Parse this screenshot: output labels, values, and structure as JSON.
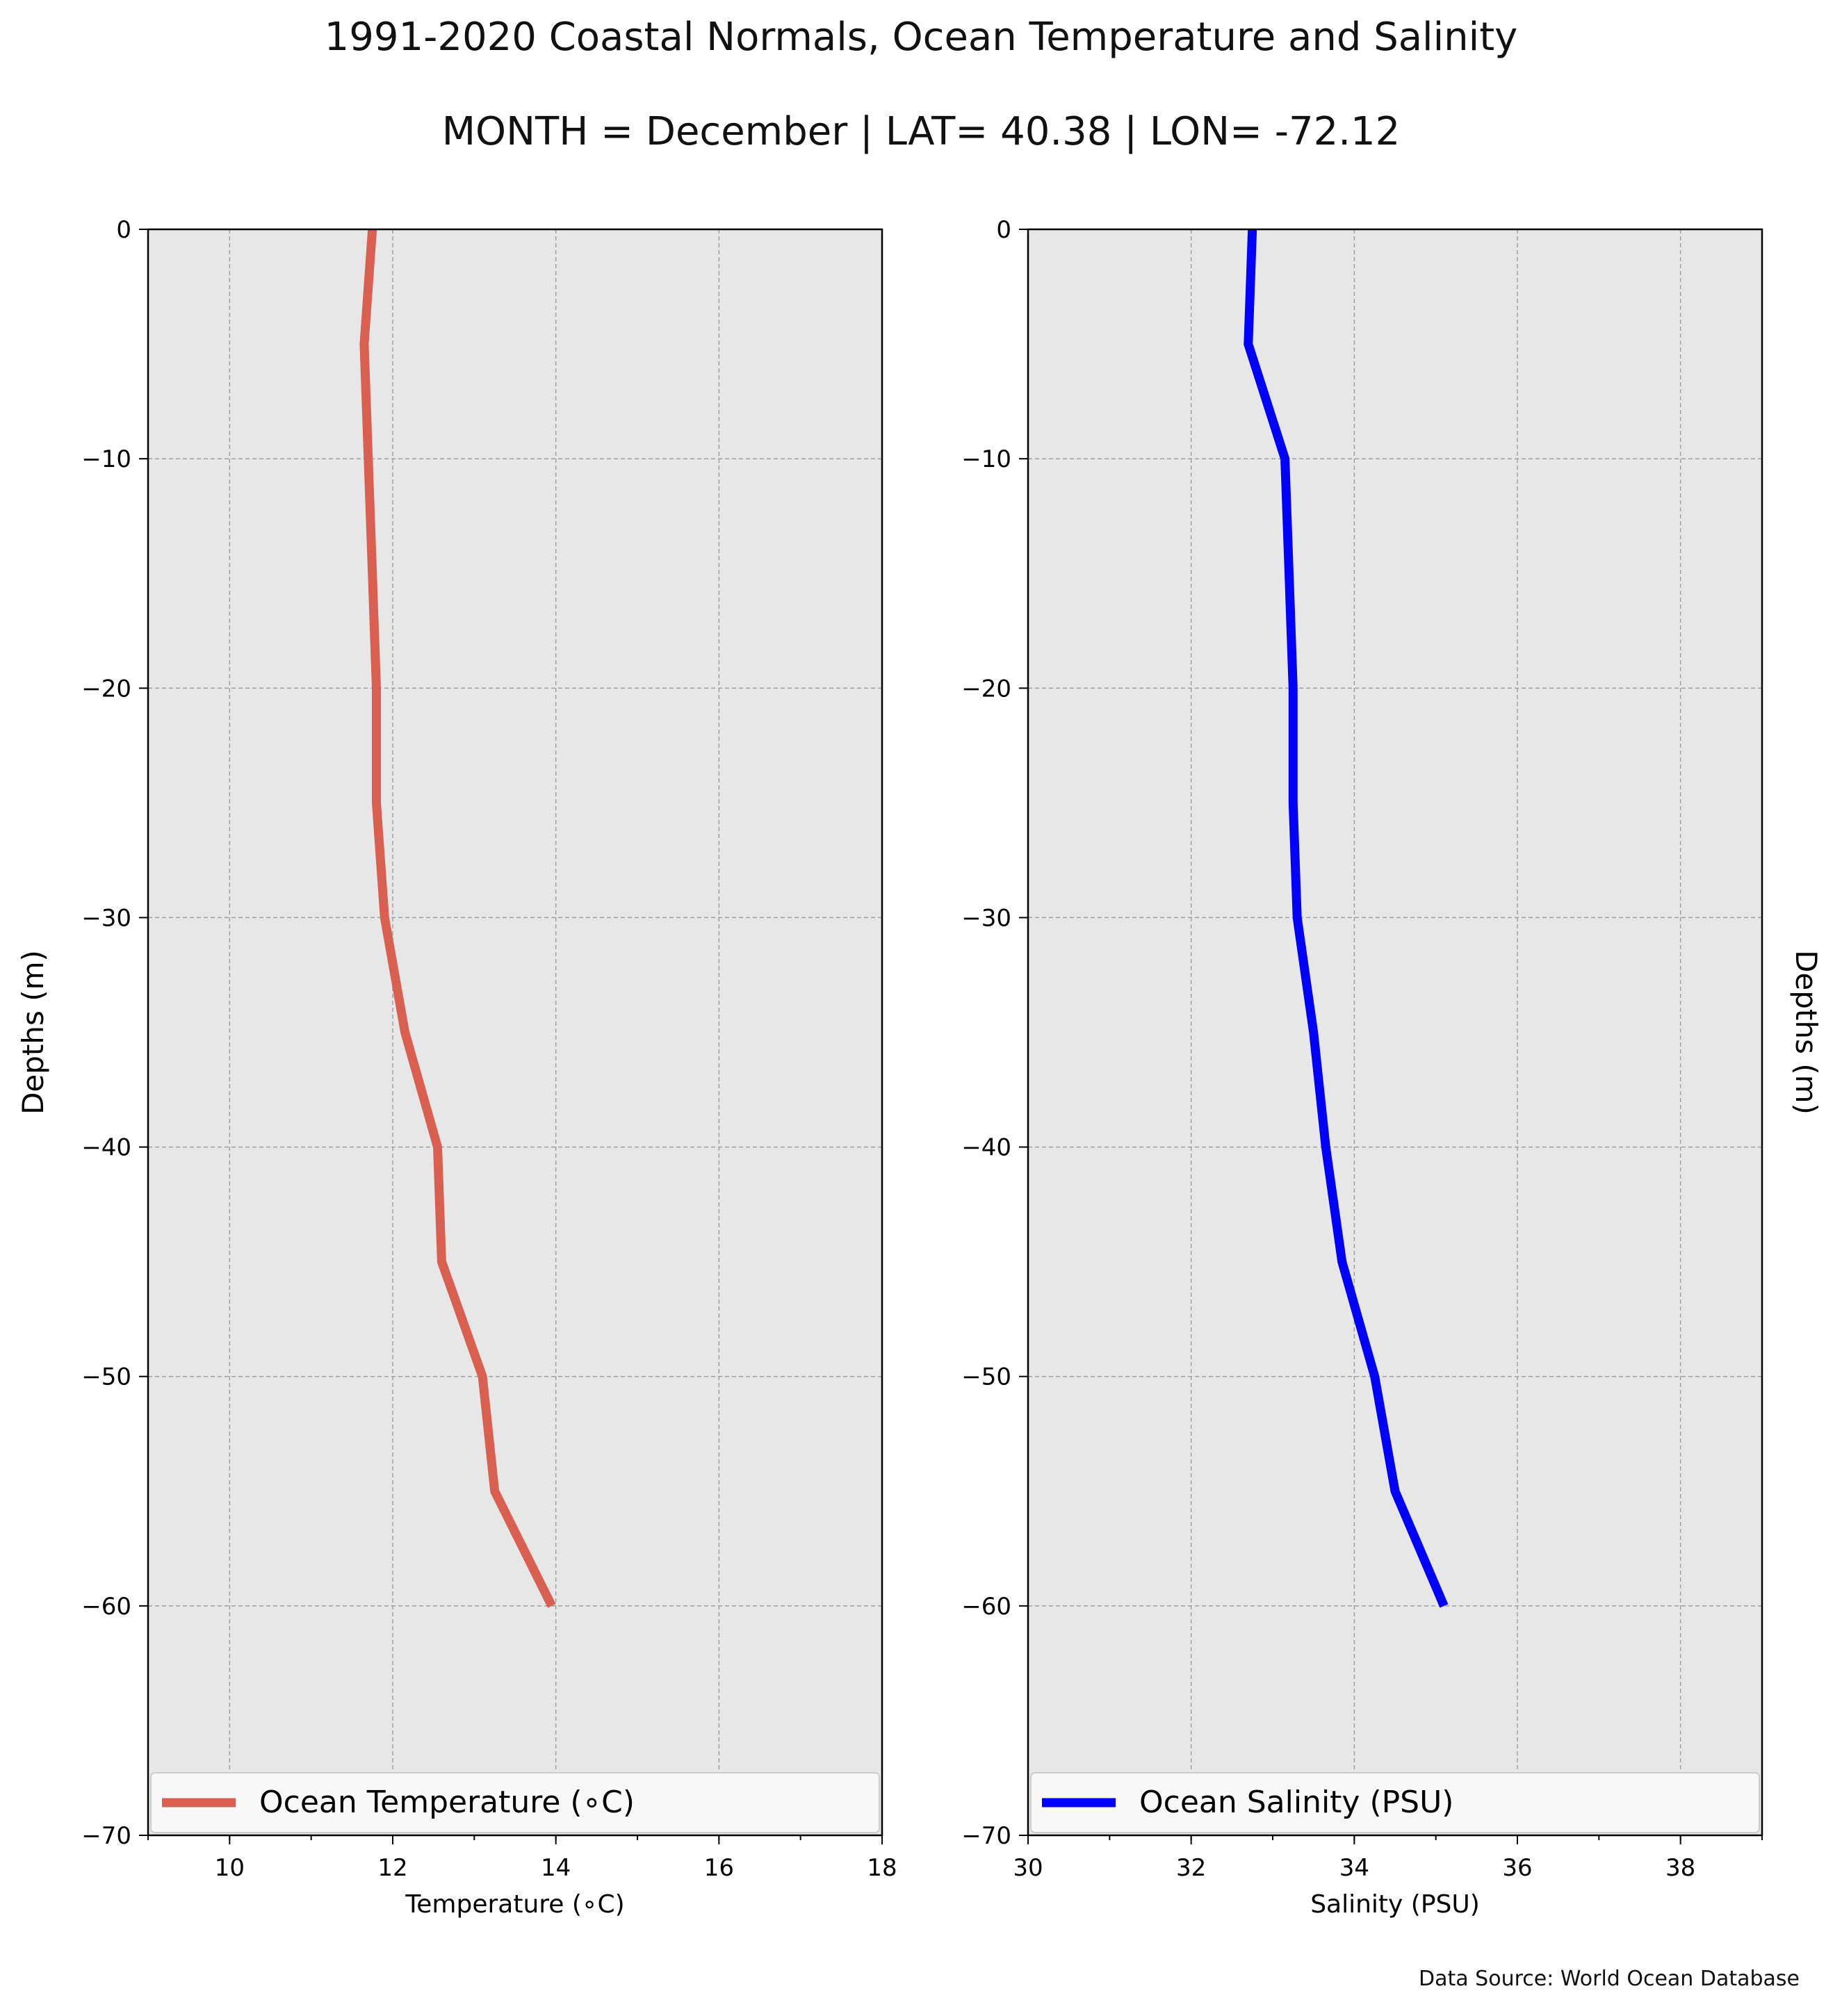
{
  "figure": {
    "title": "1991-2020 Coastal Normals, Ocean Temperature and Salinity",
    "subtitle": "MONTH = December | LAT= 40.38 | LON= -72.12",
    "source": "Data Source: World Ocean Database"
  },
  "colors": {
    "temperature": "#d96050",
    "salinity": "#0000ff",
    "plot_bg": "#e7e7e7",
    "grid": "#a0a0a0"
  },
  "chart_data": [
    {
      "type": "line",
      "xlabel": "Temperature ($^\\circ$C)",
      "xlabel_display": "Temperature (∘C)",
      "ylabel": "Depths (m)",
      "ylabel_position": "left",
      "xlim": [
        9,
        18
      ],
      "ylim": [
        -70,
        0
      ],
      "xticks": [
        10,
        12,
        14,
        16,
        18
      ],
      "yticks": [
        0,
        -10,
        -20,
        -30,
        -40,
        -50,
        -60,
        -70
      ],
      "grid": true,
      "legend": {
        "position": "bottom",
        "labels": [
          "Ocean Temperature (∘C)"
        ]
      },
      "series": [
        {
          "name": "Ocean Temperature (∘C)",
          "x": [
            11.75,
            11.65,
            11.7,
            11.75,
            11.8,
            11.8,
            11.9,
            12.15,
            12.55,
            12.6,
            13.1,
            13.25,
            13.95
          ],
          "y": [
            0,
            -5,
            -10,
            -15,
            -20,
            -25,
            -30,
            -35,
            -40,
            -45,
            -50,
            -55,
            -60
          ]
        }
      ]
    },
    {
      "type": "line",
      "xlabel": "Salinity (PSU)",
      "ylabel": "Depths (m)",
      "ylabel_position": "right",
      "xlim": [
        30,
        39
      ],
      "ylim": [
        -70,
        0
      ],
      "xticks": [
        30,
        32,
        34,
        36,
        38
      ],
      "yticks": [
        0,
        -10,
        -20,
        -30,
        -40,
        -50,
        -60,
        -70
      ],
      "grid": true,
      "legend": {
        "position": "bottom",
        "labels": [
          "Ocean Salinity (PSU)"
        ]
      },
      "series": [
        {
          "name": "Ocean Salinity (PSU)",
          "x": [
            32.75,
            32.7,
            33.15,
            33.2,
            33.25,
            33.25,
            33.3,
            33.5,
            33.65,
            33.85,
            34.25,
            34.5,
            35.1
          ],
          "y": [
            0,
            -5,
            -10,
            -15,
            -20,
            -25,
            -30,
            -35,
            -40,
            -45,
            -50,
            -55,
            -60
          ]
        }
      ]
    }
  ]
}
